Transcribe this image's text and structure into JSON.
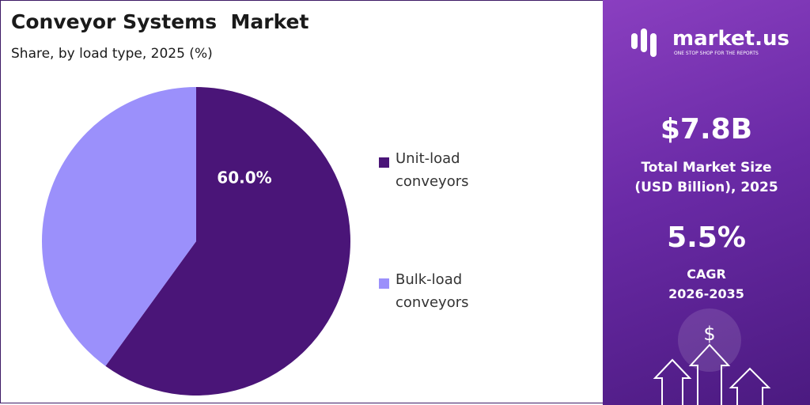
{
  "chart_data": {
    "type": "pie",
    "title": "Conveyor Systems  Market",
    "subtitle": "Share, by load type, 2025 (%)",
    "categories": [
      "Unit-load conveyors",
      "Bulk-load conveyors"
    ],
    "values": [
      60,
      40
    ],
    "value_labels": [
      "60.0%",
      null
    ],
    "colors": [
      "#4a1578",
      "#9b90fb"
    ]
  },
  "brand": {
    "name": "market.us",
    "tagline": "ONE STOP SHOP FOR THE REPORTS"
  },
  "stats": [
    {
      "value": "$7.8B",
      "label": "Total Market Size (USD Billion), 2025"
    },
    {
      "value": "5.5%",
      "label": "CAGR 2026-2035"
    }
  ]
}
